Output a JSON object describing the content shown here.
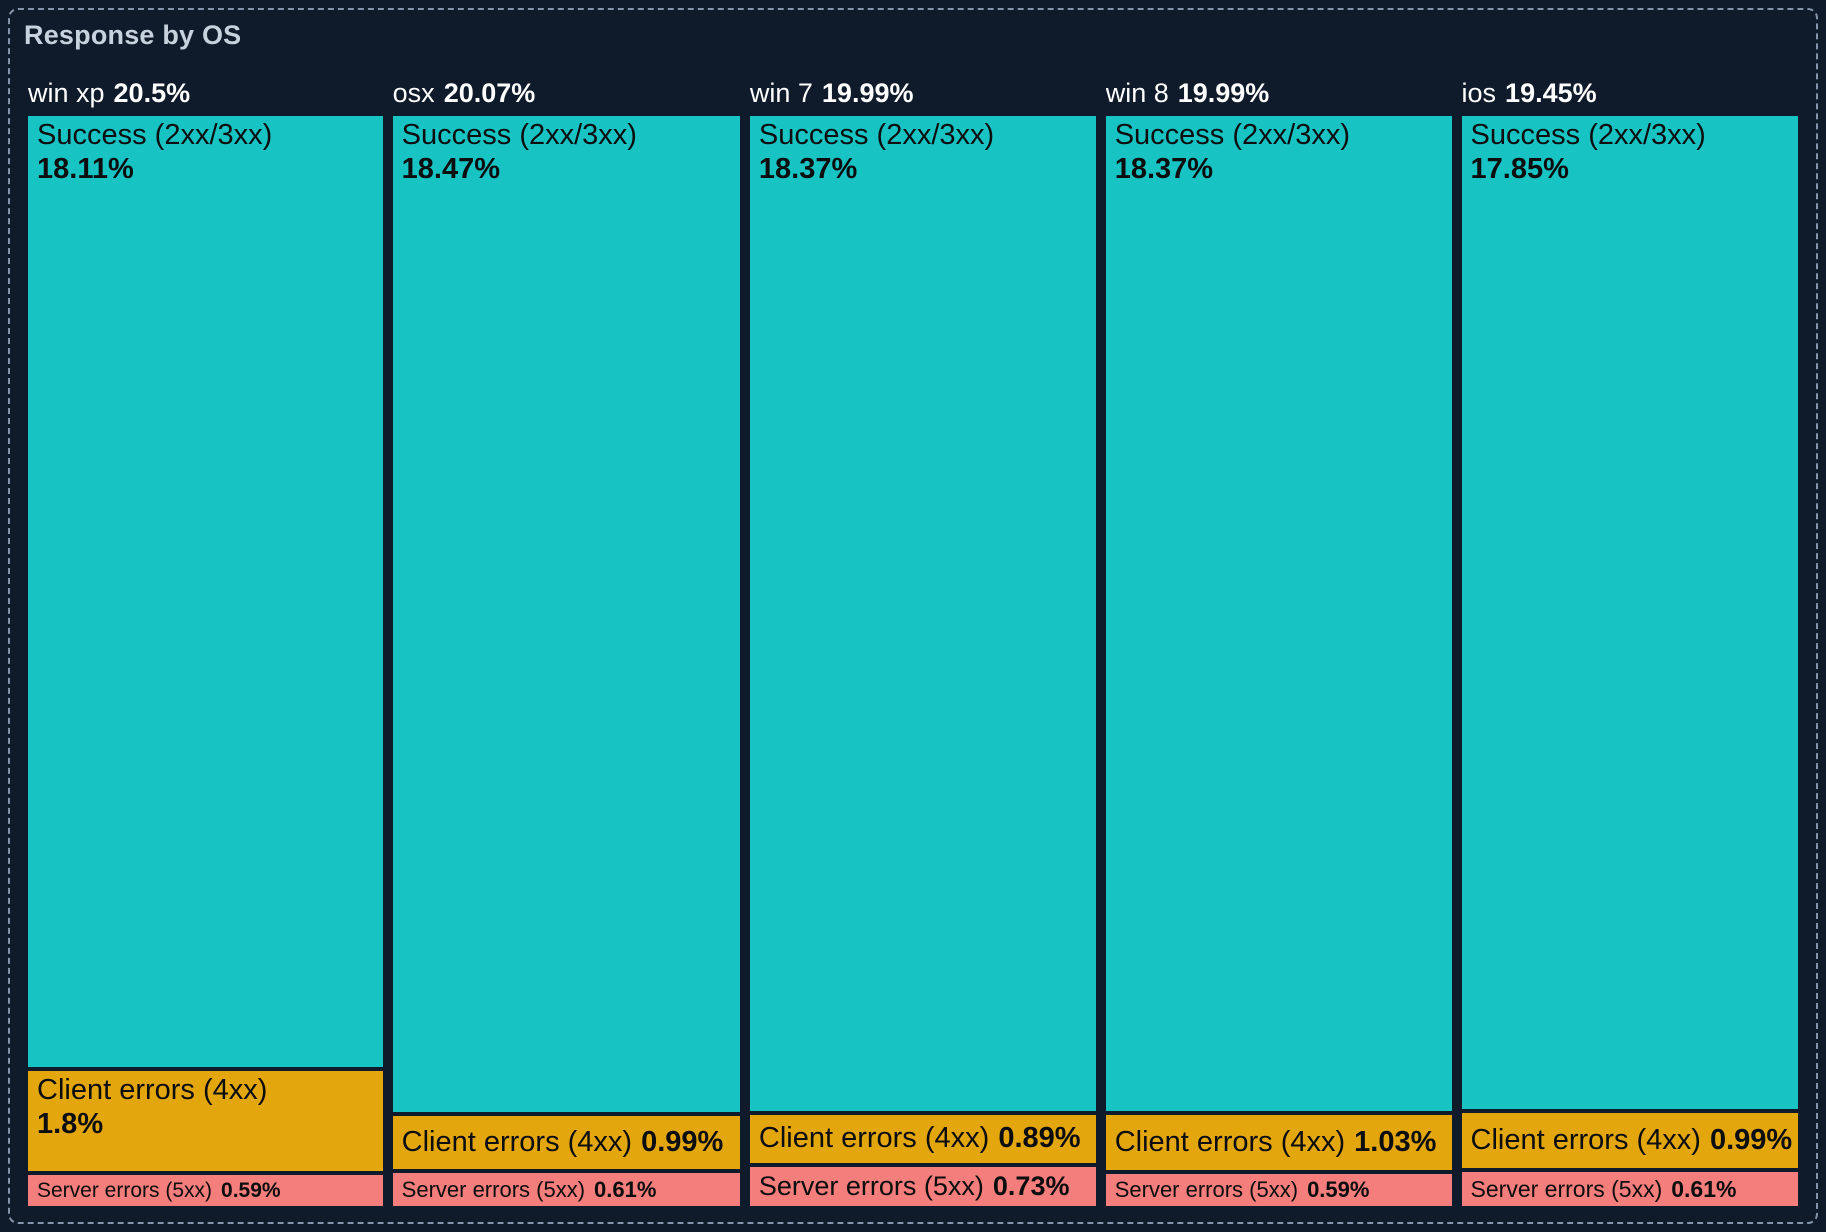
{
  "panel": {
    "title": "Response by OS"
  },
  "colors": {
    "background": "#0F1A2A",
    "panel_border": "#8494AA",
    "title_text": "#C8D1DE",
    "header_text": "#FFFFFF",
    "tile_text": "#0B0D0E",
    "success": "#18C3C3",
    "client_errors": "#E3A60D",
    "server_errors": "#F47E7C"
  },
  "chart_data": {
    "type": "treemap",
    "title": "Response by OS",
    "group_by": "OS",
    "legend": "none",
    "layout": "columns-proportional-to-share, segments-stacked-vertically",
    "groups": [
      {
        "name": "win xp",
        "share": 20.5,
        "share_label": "20.5%",
        "segments": [
          {
            "name": "Success (2xx/3xx)",
            "value": 18.11,
            "label": "18.11%",
            "category": "success"
          },
          {
            "name": "Client errors (4xx)",
            "value": 1.8,
            "label": "1.8%",
            "category": "client_errors"
          },
          {
            "name": "Server errors (5xx)",
            "value": 0.59,
            "label": "0.59%",
            "category": "server_errors"
          }
        ]
      },
      {
        "name": "osx",
        "share": 20.07,
        "share_label": "20.07%",
        "segments": [
          {
            "name": "Success (2xx/3xx)",
            "value": 18.47,
            "label": "18.47%",
            "category": "success"
          },
          {
            "name": "Client errors (4xx)",
            "value": 0.99,
            "label": "0.99%",
            "category": "client_errors"
          },
          {
            "name": "Server errors (5xx)",
            "value": 0.61,
            "label": "0.61%",
            "category": "server_errors"
          }
        ]
      },
      {
        "name": "win 7",
        "share": 19.99,
        "share_label": "19.99%",
        "segments": [
          {
            "name": "Success (2xx/3xx)",
            "value": 18.37,
            "label": "18.37%",
            "category": "success"
          },
          {
            "name": "Client errors (4xx)",
            "value": 0.89,
            "label": "0.89%",
            "category": "client_errors"
          },
          {
            "name": "Server errors (5xx)",
            "value": 0.73,
            "label": "0.73%",
            "category": "server_errors"
          }
        ]
      },
      {
        "name": "win 8",
        "share": 19.99,
        "share_label": "19.99%",
        "segments": [
          {
            "name": "Success (2xx/3xx)",
            "value": 18.37,
            "label": "18.37%",
            "category": "success"
          },
          {
            "name": "Client errors (4xx)",
            "value": 1.03,
            "label": "1.03%",
            "category": "client_errors"
          },
          {
            "name": "Server errors (5xx)",
            "value": 0.59,
            "label": "0.59%",
            "category": "server_errors"
          }
        ]
      },
      {
        "name": "ios",
        "share": 19.45,
        "share_label": "19.45%",
        "segments": [
          {
            "name": "Success (2xx/3xx)",
            "value": 17.85,
            "label": "17.85%",
            "category": "success"
          },
          {
            "name": "Client errors (4xx)",
            "value": 0.99,
            "label": "0.99%",
            "category": "client_errors"
          },
          {
            "name": "Server errors (5xx)",
            "value": 0.61,
            "label": "0.61%",
            "category": "server_errors"
          }
        ]
      }
    ]
  }
}
